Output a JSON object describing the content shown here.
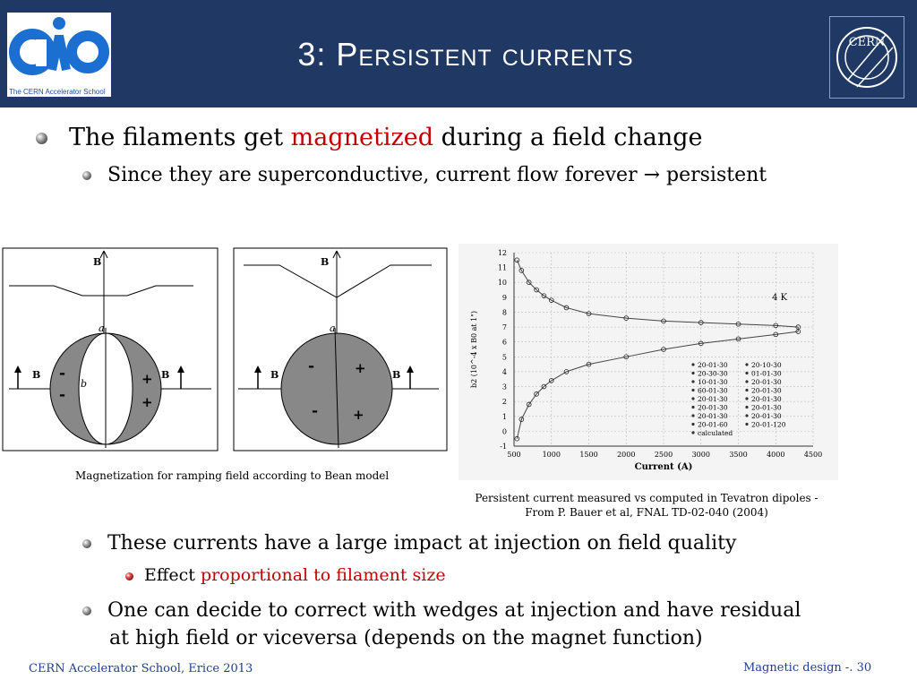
{
  "header": {
    "title": "3: Persistent currents",
    "cas_logo_text": "The CERN Accelerator School",
    "cern_logo_text": "CERN"
  },
  "bullets": {
    "b1_pre": "The filaments get ",
    "b1_highlight": "magnetized",
    "b1_post": " during a field change",
    "b2": "Since they are superconductive, current flow forever → persistent",
    "b3": "These currents have a large impact at injection on field quality",
    "b4_pre": "Effect ",
    "b4_highlight": "proportional to filament size",
    "b5_line1": "One can decide to correct with wedges at injection and have residual",
    "b5_line2": "at high field or viceversa (depends on the magnet function)"
  },
  "bean_diagram": {
    "label_B": "B",
    "label_a": "a",
    "label_b": "b",
    "minus": "-",
    "plus": "+"
  },
  "captions": {
    "left": "Magnetization for ramping field according to Bean model",
    "right_line1": "Persistent current measured vs computed in Tevatron dipoles -",
    "right_line2": "From P. Bauer et al, FNAL TD-02-040 (2004)"
  },
  "footer": {
    "left": "CERN Accelerator School, Erice 2013",
    "right": "Magnetic design -. 30"
  },
  "colors": {
    "header_bg": "#1f3864",
    "highlight": "#c00000",
    "footer_text": "#1f3e8c"
  },
  "chart_data": {
    "type": "scatter",
    "xlabel": "Current (A)",
    "ylabel": "b2 (10^-4 x B0 at 1\")",
    "xlim": [
      500,
      4500
    ],
    "ylim": [
      -1,
      12
    ],
    "x_ticks": [
      500,
      1000,
      1500,
      2000,
      2500,
      3000,
      3500,
      4000,
      4500
    ],
    "y_ticks": [
      -1,
      0,
      1,
      2,
      3,
      4,
      5,
      6,
      7,
      8,
      9,
      10,
      11,
      12
    ],
    "annotation": "4 K",
    "legend_position": "bottom-right",
    "legend": [
      "20-01-30",
      "20-10-30",
      "20-30-30",
      "01-01-30",
      "10-01-30",
      "20-01-30",
      "60-01-30",
      "20-01-30",
      "20-01-30",
      "20-01-30",
      "20-01-30",
      "20-01-30",
      "20-01-30",
      "20-01-30",
      "20-01-60",
      "20-01-120",
      "calculated"
    ],
    "series": [
      {
        "x": [
          540,
          600,
          700,
          800,
          900,
          1000,
          1200,
          1500,
          2000,
          2500,
          3000,
          3500,
          4000,
          4300
        ],
        "y": [
          11.5,
          10.8,
          10.0,
          9.5,
          9.1,
          8.8,
          8.3,
          7.9,
          7.6,
          7.4,
          7.3,
          7.2,
          7.1,
          7.0
        ]
      },
      {
        "x": [
          540,
          600,
          700,
          800,
          900,
          1000,
          1200,
          1500,
          2000,
          2500,
          3000,
          3500,
          4000,
          4300
        ],
        "y": [
          -0.5,
          0.8,
          1.8,
          2.5,
          3.0,
          3.4,
          4.0,
          4.5,
          5.0,
          5.5,
          5.9,
          6.2,
          6.5,
          6.7
        ]
      }
    ]
  }
}
